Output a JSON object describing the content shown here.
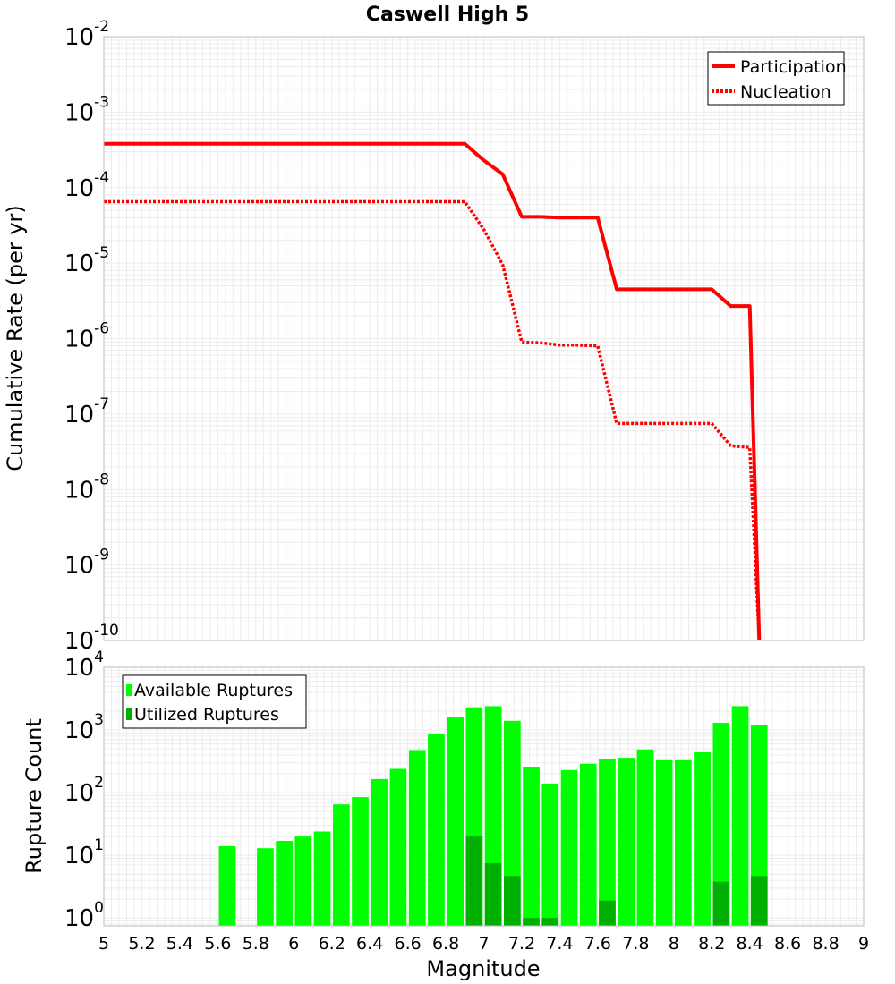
{
  "chart_data": [
    {
      "type": "line",
      "title": "Caswell High 5",
      "xlabel": "",
      "ylabel": "Cumulative Rate (per yr)",
      "xlim": [
        5,
        9
      ],
      "ylim": [
        1e-10,
        0.01
      ],
      "yscale": "log",
      "y_tick_labels": [
        {
          "base": "10",
          "exp": "-10",
          "value": 1e-10
        },
        {
          "base": "10",
          "exp": "-9",
          "value": 1e-09
        },
        {
          "base": "10",
          "exp": "-8",
          "value": 1e-08
        },
        {
          "base": "10",
          "exp": "-7",
          "value": 1e-07
        },
        {
          "base": "10",
          "exp": "-6",
          "value": 1e-06
        },
        {
          "base": "10",
          "exp": "-5",
          "value": 1e-05
        },
        {
          "base": "10",
          "exp": "-4",
          "value": 0.0001
        },
        {
          "base": "10",
          "exp": "-3",
          "value": 0.001
        },
        {
          "base": "10",
          "exp": "-2",
          "value": 0.01
        }
      ],
      "grid": true,
      "legend": "top-right",
      "series": [
        {
          "name": "Participation",
          "style": "solid",
          "color": "#ff0000",
          "x": [
            5.0,
            6.9,
            7.0,
            7.1,
            7.2,
            7.3,
            7.4,
            7.5,
            7.6,
            7.7,
            7.8,
            7.9,
            8.0,
            8.1,
            8.2,
            8.3,
            8.4,
            8.45
          ],
          "y": [
            0.00038,
            0.00038,
            0.00023,
            0.00015,
            4.1e-05,
            4.1e-05,
            4e-05,
            4e-05,
            4e-05,
            4.5e-06,
            4.5e-06,
            4.5e-06,
            4.5e-06,
            4.5e-06,
            4.5e-06,
            2.7e-06,
            2.7e-06,
            1e-10
          ]
        },
        {
          "name": "Nucleation",
          "style": "dotted",
          "color": "#ff0000",
          "x": [
            5.0,
            6.9,
            7.0,
            7.1,
            7.2,
            7.3,
            7.4,
            7.5,
            7.6,
            7.7,
            7.8,
            7.9,
            8.0,
            8.1,
            8.2,
            8.3,
            8.4,
            8.45
          ],
          "y": [
            6.5e-05,
            6.5e-05,
            2.8e-05,
            9.5e-06,
            9e-07,
            8.8e-07,
            8.2e-07,
            8.2e-07,
            8e-07,
            7.5e-08,
            7.5e-08,
            7.5e-08,
            7.5e-08,
            7.5e-08,
            7.5e-08,
            3.8e-08,
            3.6e-08,
            1e-10
          ]
        }
      ]
    },
    {
      "type": "bar",
      "title": "",
      "xlabel": "Magnitude",
      "ylabel": "Rupture Count",
      "xlim": [
        5,
        9
      ],
      "ylim": [
        0.75,
        10000
      ],
      "yscale": "log",
      "y_tick_labels": [
        {
          "base": "10",
          "exp": "0",
          "value": 1
        },
        {
          "base": "10",
          "exp": "1",
          "value": 10
        },
        {
          "base": "10",
          "exp": "2",
          "value": 100
        },
        {
          "base": "10",
          "exp": "3",
          "value": 1000
        },
        {
          "base": "10",
          "exp": "4",
          "value": 10000
        }
      ],
      "x_tick_labels": [
        "5",
        "5.2",
        "5.4",
        "5.6",
        "5.8",
        "6",
        "6.2",
        "6.4",
        "6.6",
        "6.8",
        "7",
        "7.2",
        "7.4",
        "7.6",
        "7.8",
        "8",
        "8.2",
        "8.4",
        "8.6",
        "8.8",
        "9"
      ],
      "x_tick_values": [
        5,
        5.2,
        5.4,
        5.6,
        5.8,
        6,
        6.2,
        6.4,
        6.6,
        6.8,
        7,
        7.2,
        7.4,
        7.6,
        7.8,
        8,
        8.2,
        8.4,
        8.6,
        8.8,
        9
      ],
      "bar_width": 0.1,
      "grid": true,
      "legend": "top-left",
      "series": [
        {
          "name": "Available Ruptures",
          "color": "#00ff00",
          "x": [
            5.65,
            5.85,
            5.95,
            6.05,
            6.15,
            6.25,
            6.35,
            6.45,
            6.55,
            6.65,
            6.75,
            6.85,
            6.95,
            7.05,
            7.15,
            7.25,
            7.35,
            7.45,
            7.55,
            7.65,
            7.75,
            7.85,
            7.95,
            8.05,
            8.15,
            8.25,
            8.35,
            8.45
          ],
          "values": [
            14,
            13,
            17,
            20,
            24,
            65,
            85,
            165,
            240,
            480,
            870,
            1600,
            2300,
            2400,
            1400,
            260,
            140,
            230,
            290,
            350,
            360,
            490,
            330,
            330,
            440,
            1300,
            2400,
            1200
          ]
        },
        {
          "name": "Utilized Ruptures",
          "color": "#00b000",
          "x": [
            6.95,
            7.05,
            7.15,
            7.25,
            7.35,
            7.65,
            8.25,
            8.45
          ],
          "values": [
            20,
            7.5,
            4.7,
            1,
            1,
            1.9,
            3.8,
            4.7
          ]
        }
      ]
    }
  ]
}
